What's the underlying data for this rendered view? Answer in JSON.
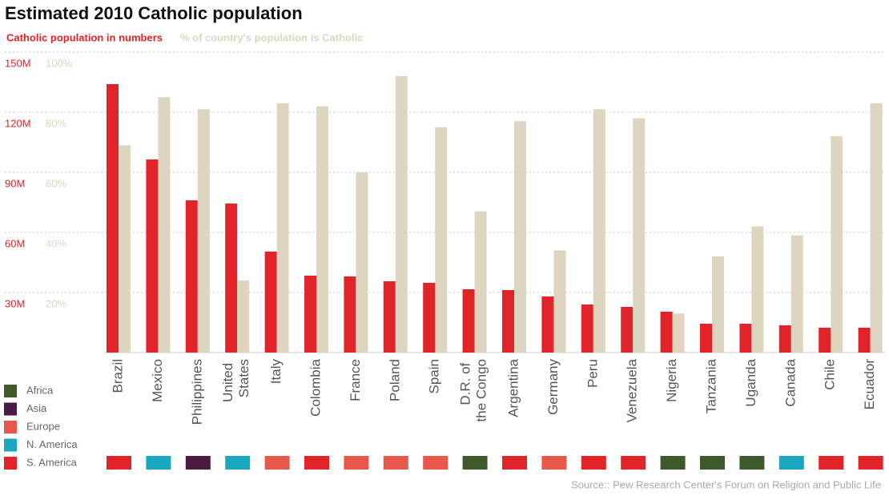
{
  "chart_data": {
    "type": "bar",
    "title": "Estimated 2010 Catholic population",
    "source": "Source:: Pew Research Center's Forum on Religion and Public Life",
    "categories": [
      "Brazil",
      "Mexico",
      "Philippines",
      "United States",
      "Italy",
      "Colombia",
      "France",
      "Poland",
      "Spain",
      "D.R. of the Congo",
      "Argentina",
      "Germany",
      "Peru",
      "Venezuela",
      "Nigeria",
      "Tanzania",
      "Uganda",
      "Canada",
      "Chile",
      "Ecuador"
    ],
    "series": [
      {
        "name": "Catholic population in numbers",
        "color": "#e0242a",
        "axis": "y",
        "values": [
          134,
          96.4,
          76,
          74.4,
          50.4,
          38.4,
          38,
          35.6,
          34.8,
          31.6,
          31.2,
          28,
          24,
          22.8,
          20.4,
          14.4,
          14.4,
          13.6,
          12.4,
          12.4
        ]
      },
      {
        "name": "% of country's population is Catholic",
        "color": "#ddd5c0",
        "axis": "y2",
        "values": [
          69,
          85,
          81,
          24,
          83,
          82,
          60,
          92,
          75,
          47,
          77,
          34,
          81,
          78,
          13,
          32,
          42,
          39,
          72,
          83
        ]
      }
    ],
    "ylim": [
      0,
      150
    ],
    "yticks": [
      {
        "value": 30,
        "label": "30M"
      },
      {
        "value": 60,
        "label": "60M"
      },
      {
        "value": 90,
        "label": "90M"
      },
      {
        "value": 120,
        "label": "120M"
      },
      {
        "value": 150,
        "label": "150M"
      }
    ],
    "y2lim": [
      0,
      100
    ],
    "y2ticks": [
      {
        "value": 20,
        "label": "20%"
      },
      {
        "value": 40,
        "label": "40%"
      },
      {
        "value": 60,
        "label": "60%"
      },
      {
        "value": 80,
        "label": "80%"
      },
      {
        "value": 100,
        "label": "100%"
      }
    ],
    "grid": true,
    "regions": [
      {
        "name": "Africa",
        "color": "#3f5a2a"
      },
      {
        "name": "Asia",
        "color": "#4a1a42"
      },
      {
        "name": "Europe",
        "color": "#e8584a"
      },
      {
        "name": "N. America",
        "color": "#1aa7c0"
      },
      {
        "name": "S. America",
        "color": "#e0242a"
      }
    ],
    "category_regions": [
      "S. America",
      "N. America",
      "Asia",
      "N. America",
      "Europe",
      "S. America",
      "Europe",
      "Europe",
      "Europe",
      "Africa",
      "S. America",
      "Europe",
      "S. America",
      "S. America",
      "Africa",
      "Africa",
      "Africa",
      "N. America",
      "S. America",
      "S. America"
    ]
  }
}
